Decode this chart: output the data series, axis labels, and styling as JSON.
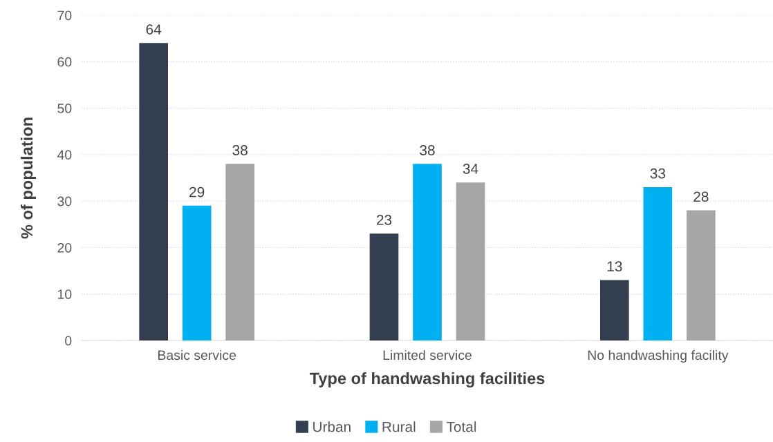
{
  "chart_data": {
    "type": "bar",
    "xlabel": "Type of handwashing facilities",
    "ylabel": "% of population",
    "categories": [
      "Basic service",
      "Limited service",
      "No handwashing facility"
    ],
    "series": [
      {
        "name": "Urban",
        "color": "#333f50",
        "values": [
          64,
          23,
          13
        ]
      },
      {
        "name": "Rural",
        "color": "#00b0f0",
        "values": [
          29,
          38,
          33
        ]
      },
      {
        "name": "Total",
        "color": "#a6a6a6",
        "values": [
          38,
          34,
          28
        ]
      }
    ],
    "ylim": [
      0,
      70
    ],
    "yticks": [
      0,
      10,
      20,
      30,
      40,
      50,
      60,
      70
    ],
    "grid": "y",
    "legend": "bottom",
    "data_labels": true
  }
}
